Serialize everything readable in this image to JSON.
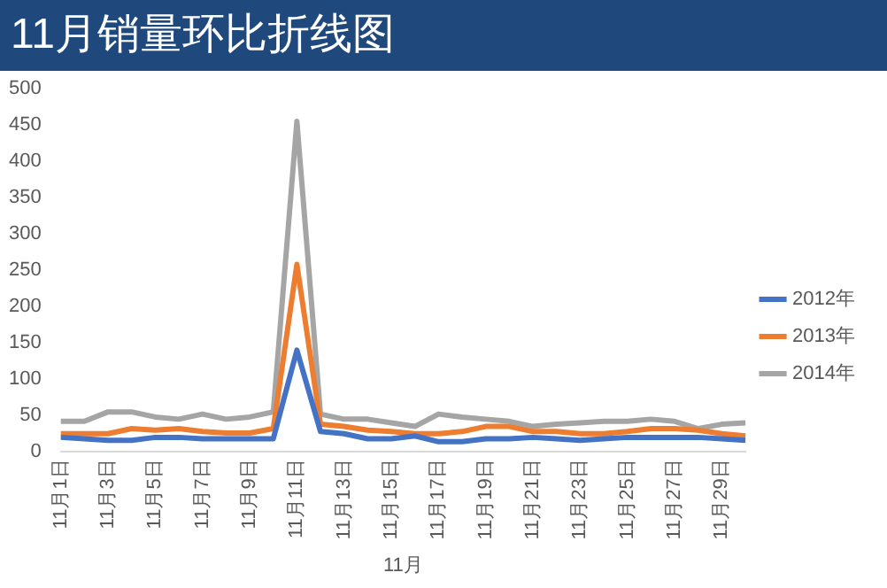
{
  "chart_data": {
    "type": "line",
    "title": "11月销量环比折线图",
    "xlabel": "11月",
    "categories": [
      "11月1日",
      null,
      "11月3日",
      null,
      "11月5日",
      null,
      "11月7日",
      null,
      "11月9日",
      null,
      "11月11日",
      null,
      "11月13日",
      null,
      "11月15日",
      null,
      "11月17日",
      null,
      "11月19日",
      null,
      "11月21日",
      null,
      "11月23日",
      null,
      "11月25日",
      null,
      "11月27日",
      null,
      "11月29日",
      null
    ],
    "series": [
      {
        "name": "2012年",
        "color": "#4472c4",
        "values": [
          20,
          18,
          16,
          16,
          20,
          20,
          18,
          18,
          18,
          18,
          140,
          28,
          25,
          18,
          18,
          22,
          14,
          14,
          18,
          18,
          20,
          18,
          16,
          18,
          20,
          20,
          20,
          20,
          18,
          16
        ]
      },
      {
        "name": "2013年",
        "color": "#ed7d31",
        "values": [
          25,
          25,
          25,
          32,
          30,
          32,
          28,
          26,
          26,
          32,
          258,
          38,
          35,
          30,
          28,
          25,
          25,
          28,
          35,
          35,
          28,
          28,
          25,
          25,
          28,
          32,
          32,
          30,
          25,
          22
        ]
      },
      {
        "name": "2014年",
        "color": "#a5a5a5",
        "values": [
          42,
          42,
          55,
          55,
          48,
          45,
          52,
          45,
          48,
          55,
          455,
          52,
          45,
          45,
          40,
          35,
          52,
          48,
          45,
          42,
          35,
          38,
          40,
          42,
          42,
          45,
          42,
          32,
          38,
          40
        ]
      }
    ],
    "ylim": [
      0,
      500
    ],
    "yticks": [
      0,
      50,
      100,
      150,
      200,
      250,
      300,
      350,
      400,
      450,
      500
    ],
    "grid": false,
    "legend": "right",
    "marker": "none",
    "line_style": "solid"
  }
}
